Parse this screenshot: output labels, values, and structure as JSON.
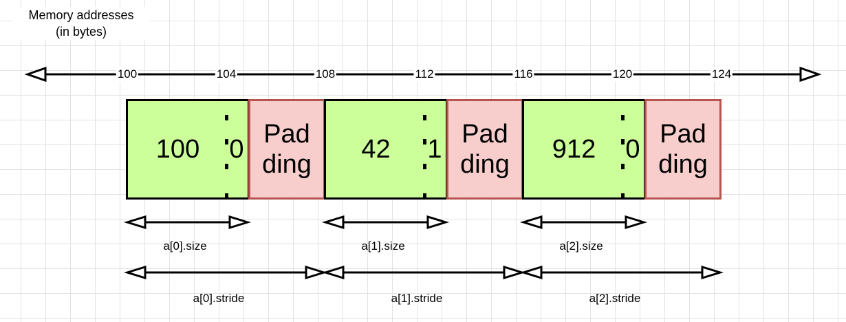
{
  "header": {
    "line1": "Memory addresses",
    "line2": "(in bytes)"
  },
  "addresses": [
    "100",
    "104",
    "108",
    "112",
    "116",
    "120",
    "124"
  ],
  "elements": [
    {
      "value": "100",
      "flag": "0",
      "padding_line1": "Pad",
      "padding_line2": "ding",
      "size_label": "a[0].size",
      "stride_label": "a[0].stride"
    },
    {
      "value": "42",
      "flag": "1",
      "padding_line1": "Pad",
      "padding_line2": "ding",
      "size_label": "a[1].size",
      "stride_label": "a[1].stride"
    },
    {
      "value": "912",
      "flag": "0",
      "padding_line1": "Pad",
      "padding_line2": "ding",
      "size_label": "a[2].size",
      "stride_label": "a[2].stride"
    }
  ],
  "colors": {
    "value_fill": "#ccff99",
    "value_border": "#000000",
    "padding_fill": "#f8cecc",
    "padding_border": "#b85450"
  }
}
